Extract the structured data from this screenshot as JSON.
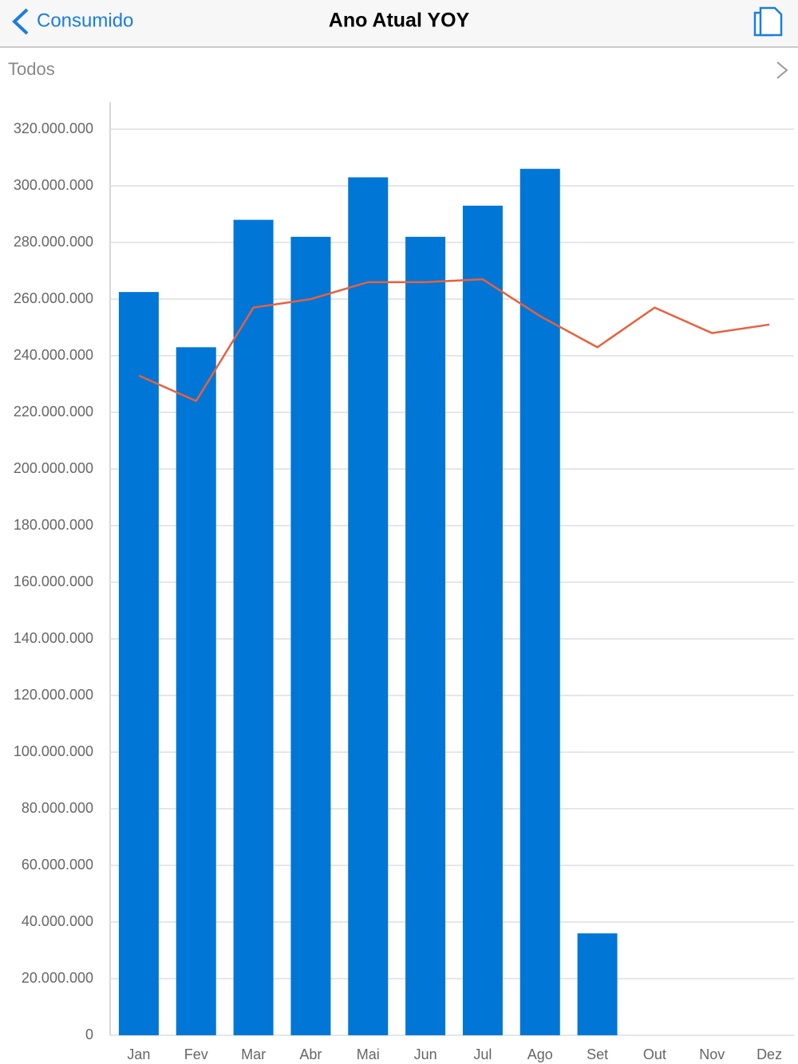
{
  "header": {
    "back": "Consumido",
    "title": "Ano Atual YOY"
  },
  "filter": {
    "label": "Todos"
  },
  "chart_data": {
    "type": "bar",
    "categories": [
      "Jan",
      "Fev",
      "Mar",
      "Abr",
      "Mai",
      "Jun",
      "Jul",
      "Ago",
      "Set",
      "Out",
      "Nov",
      "Dez"
    ],
    "series": [
      {
        "type": "bar",
        "color": "#0076d6",
        "values": [
          262500000,
          243000000,
          288000000,
          282000000,
          303000000,
          282000000,
          293000000,
          306000000,
          36000000,
          null,
          null,
          null
        ]
      },
      {
        "type": "line",
        "color": "#e8603c",
        "values": [
          233000000,
          224000000,
          257000000,
          260000000,
          266000000,
          266000000,
          267000000,
          254000000,
          243000000,
          257000000,
          248000000,
          251000000
        ]
      }
    ],
    "ylim": [
      0,
      320000000
    ],
    "yticks": [
      0,
      {
        "value": 20000000,
        "label": "20.000.000"
      },
      {
        "value": 40000000,
        "label": "40.000.000"
      },
      {
        "value": 60000000,
        "label": "60.000.000"
      },
      {
        "value": 80000000,
        "label": "80.000.000"
      },
      {
        "value": 100000000,
        "label": "100.000.000"
      },
      {
        "value": 120000000,
        "label": "120.000.000"
      },
      {
        "value": 140000000,
        "label": "140.000.000"
      },
      {
        "value": 160000000,
        "label": "160.000.000"
      },
      {
        "value": 180000000,
        "label": "180.000.000"
      },
      {
        "value": 200000000,
        "label": "200.000.000"
      },
      {
        "value": 220000000,
        "label": "220.000.000"
      },
      {
        "value": 240000000,
        "label": "240.000.000"
      },
      {
        "value": 260000000,
        "label": "260.000.000"
      },
      {
        "value": 280000000,
        "label": "280.000.000"
      },
      {
        "value": 300000000,
        "label": "300.000.000"
      },
      {
        "value": 320000000,
        "label": "320.000.000"
      }
    ],
    "grid": true
  }
}
